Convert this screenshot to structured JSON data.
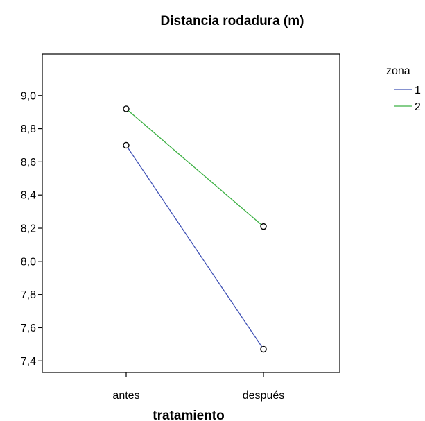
{
  "chart_data": {
    "type": "line",
    "title": "Distancia rodadura (m)",
    "xlabel": "tratamiento",
    "ylabel": "",
    "categories": [
      "antes",
      "después"
    ],
    "yticks": [
      "7,4",
      "7,6",
      "7,8",
      "8,0",
      "8,2",
      "8,4",
      "8,6",
      "8,8",
      "9,0"
    ],
    "ylim": [
      7.33,
      9.25
    ],
    "legend": {
      "title": "zona",
      "position": "top-right outside plot"
    },
    "series": [
      {
        "name": "1",
        "color": "#3f51b5",
        "values": [
          8.7,
          7.47
        ]
      },
      {
        "name": "2",
        "color": "#3cb043",
        "values": [
          8.92,
          8.21
        ]
      }
    ],
    "markers": "open-circle",
    "grid": false
  }
}
